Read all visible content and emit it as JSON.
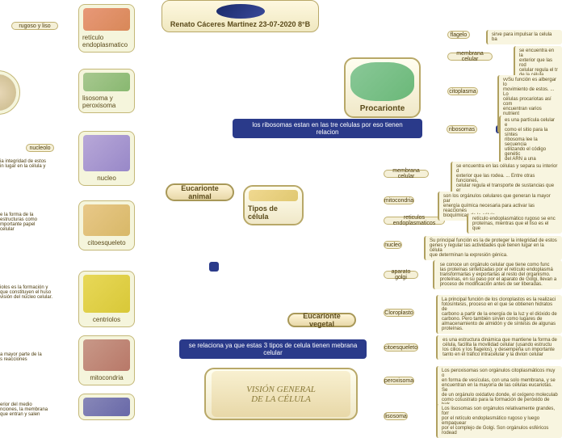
{
  "title": {
    "author": "Renato Cáceres Martinez 23-07-2020 8°B"
  },
  "center": {
    "label": "Tipos de célula"
  },
  "bubbles": {
    "procarionte": "Procarionte",
    "eucarionte_animal": "Eucarionte animal",
    "eucarionte_vegetal": "Eucarionte vegetal"
  },
  "bars": {
    "ribosomas_relation": "los ribosomas estan en las tre celulas por eso tienen relacion",
    "membrana_relation": "se relaciona ya que estas 3 tipos de celula tienen mebrana celular"
  },
  "left_images": [
    {
      "caption": "retículo endoplasmatico"
    },
    {
      "caption": "lisosoma y peroxisoma"
    },
    {
      "caption": "nucleo"
    },
    {
      "caption": "citoesqueleto"
    },
    {
      "caption": "centriolos"
    },
    {
      "caption": "mitocondria"
    },
    {
      "caption": ""
    }
  ],
  "left_labels": {
    "rugoso_liso": "rugoso y liso",
    "nucleolo": "nucleolo"
  },
  "left_texts": [
    "ia integridad de estos\nin lugar en la célula y",
    "e la forma de la\nestructuras como\nmportante papel\ncelular",
    "iolos es la formación y\nque constituyen el huso\nvisión del núcleo celular.",
    "a mayor parte de la\ns reacciones",
    "erior del medio\nnciones, la membrana\nque entran y salen"
  ],
  "right_labels": {
    "flagelo": "flagelo",
    "membrana_celular": "membrana celular",
    "citoplasma": "citoplasma",
    "ribosomas": "ribosomas",
    "membrana_celular2": "membrana celular",
    "mitocondria": "mitocondria",
    "reticulos": "reticulos endoplasmaticos",
    "nucleo": "nucleo",
    "aparato_golgi": "aparato golgi",
    "cloroplasto": "Cloroplasto",
    "citoesqueleto": "citoesqueleto",
    "peroxisoma": "peroxisoma",
    "lisosoma": "lisosoma"
  },
  "right_descs": {
    "flagelo": "sirve para impulsar la celula ba",
    "membrana_celular": "se encuentra en la\nexterior que las rod\ncelular regula el tr\nde la célula.",
    "citoplasma": "vvSu función es albergar lo\nmovimiento de estos. ... Lo\ncélulas procariotas así com\nencuentran varios nutrient\nmembrana plasmática, leg\nde la célula.",
    "ribosomas": "es una partícula celular e\ncomo el sitio para la síntes\nribosoma lee la secuencia\nutilizando el código genétic\ndel ARN a una secuencia d",
    "membrana_celular2": "se encuentra en las células y separa su interior d\nexterior que las rodea. ... Entre otras funciones,\ncelular regula el transporte de sustancias que er\nde la célula.",
    "mitocondria": "son los orgánulos celulares que generan la mayor par\nenergía química necesaria para activar las reacciones\nbioquímicas de la célula",
    "reticulos": "retículo endoplasmático rugoso se enc\nproteínas, mientras que el liso es el que",
    "nucleo": "Su principal función es la de proteger la integridad de estos\ngenes y regular las actividades que tienen lugar en la célula\nque determinan la expresión génica.",
    "aparato_golgi": "se conoce un orgánulo celular que tiene como func\nlas proteínas sintetizadas por el retículo endoplasmá\ntransformarlas y exportarlas al resto del organismo.\nproteínas, en su paso por el aparato de Golgi, llevan a\nproceso de modificación antes de ser liberadas.",
    "cloroplasto": "La principal función de los cloroplastos es la realizaci\nfotosíntesis, proceso en el que se obtienen hidratos de\ncarbono a partir de la energía de la luz y el dióxido de\ncarbono. Pero también sirven como lugares de\nalmacenamiento de almidón y de síntesis de algunas\nproteínas.",
    "citoesqueleto": "es una estructura dinámica que mantiene la forma de\ncélula, facilita la movilidad celular (usando estructu\nlos cilios y los flagelos), y desempeña un importante\ntanto en el tráfico intracelular y la divion celular",
    "peroxisoma": "Los peroxisomas son orgánulos citoplasmáticos muy o\nen forma de vesículas, con una solo membrana, y se\nencuentran en la mayoría de las células eucariotas. Se\nde un orgánulo oxidativo donde, el oxígeno moleculab\ncomo cosustrato para la formación de peróxido de hidr",
    "lisosoma": "Los lisosomas son orgánulos relativamente grandes, forr\npor el retículo endoplasmático rugoso y luego empaquear\npor el complejo de Golgi. Son orgánulos esféricos rodead"
  },
  "bottom_vision": "VISIÓN GENERAL\nDE LA CÉLULA"
}
